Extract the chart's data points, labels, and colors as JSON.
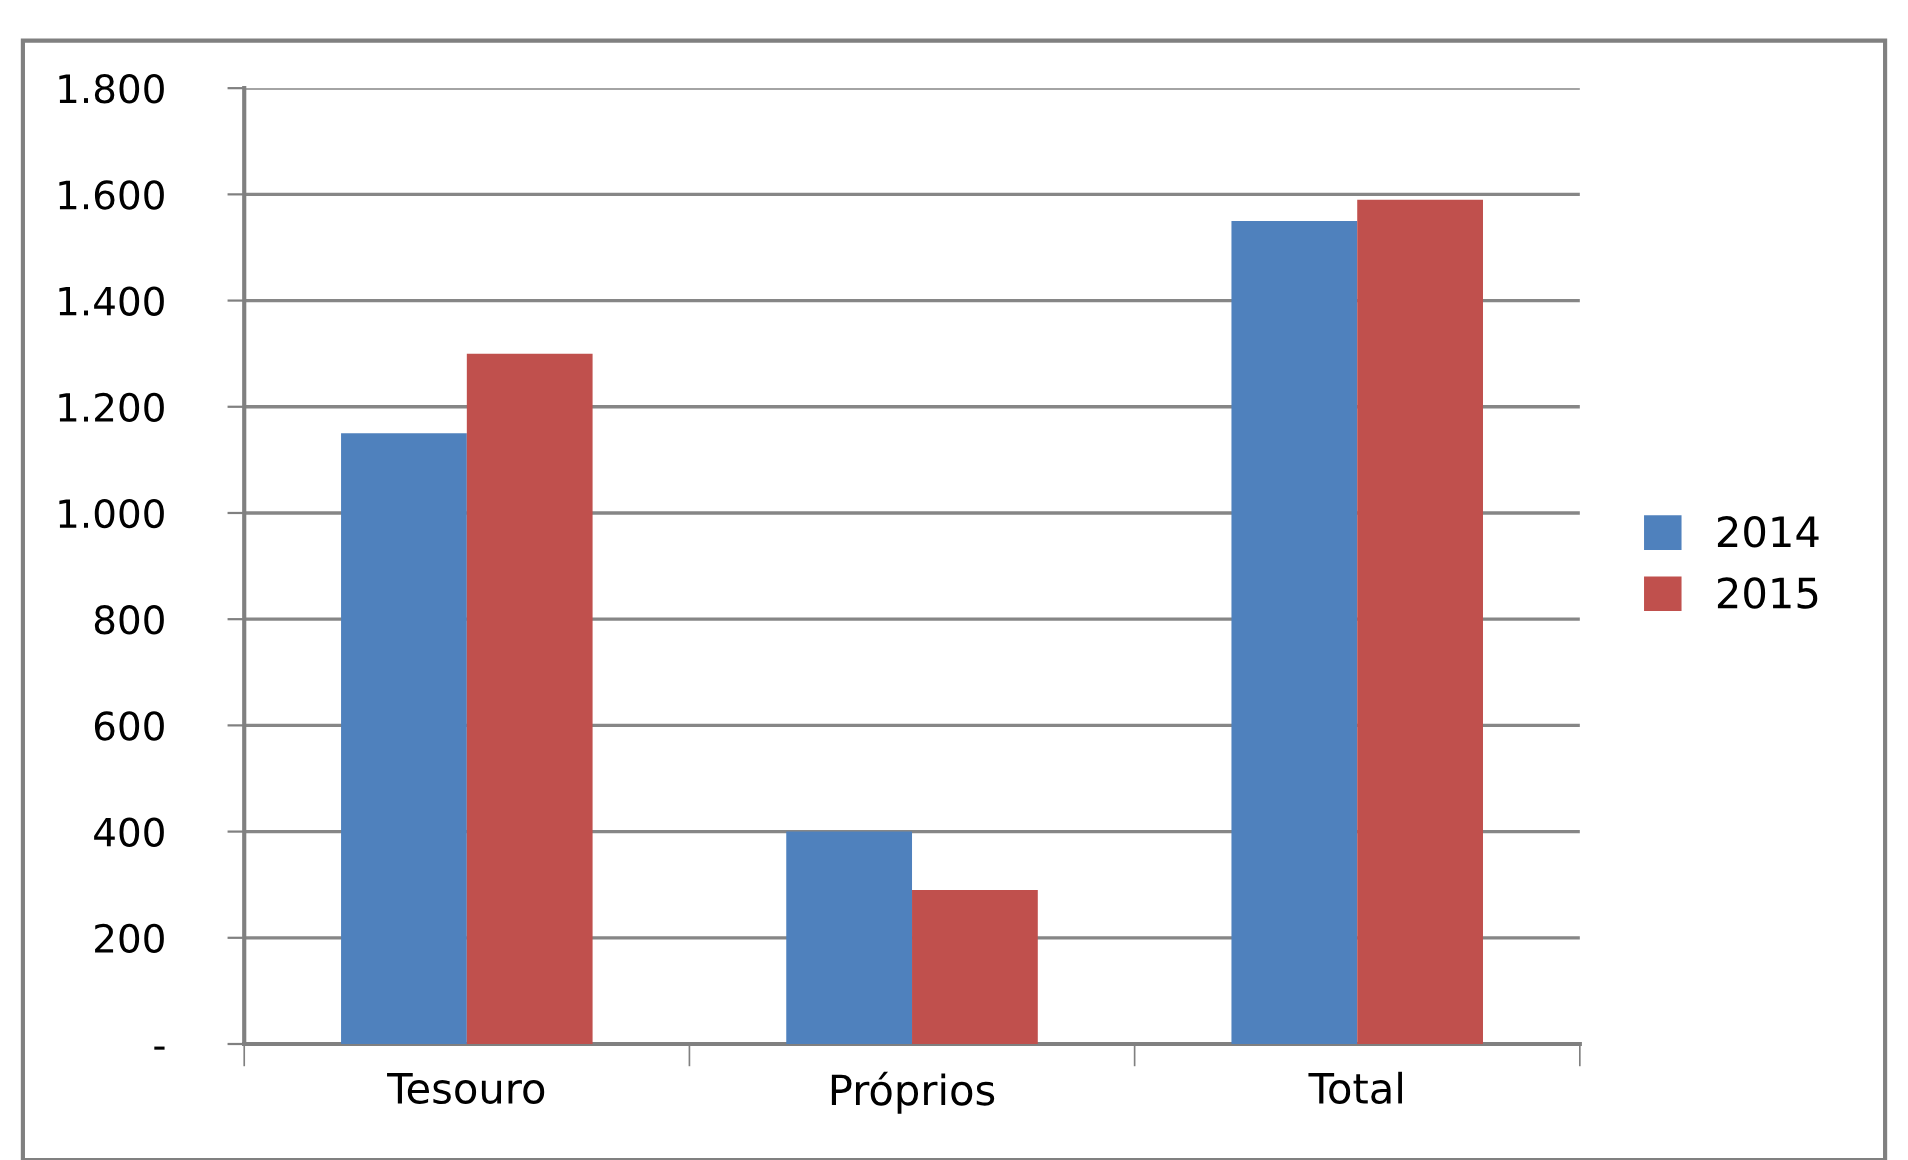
{
  "chart_data": {
    "type": "bar",
    "categories": [
      "Tesouro",
      "Próprios",
      "Total"
    ],
    "series": [
      {
        "name": "2014",
        "color": "#4f81bd",
        "values": [
          1150,
          400,
          1550
        ]
      },
      {
        "name": "2015",
        "color": "#c0504d",
        "values": [
          1300,
          290,
          1590
        ]
      }
    ],
    "ylim": [
      0,
      1800
    ],
    "yticks": [
      {
        "value": 0,
        "label": "-"
      },
      {
        "value": 200,
        "label": "200"
      },
      {
        "value": 400,
        "label": "400"
      },
      {
        "value": 600,
        "label": "600"
      },
      {
        "value": 800,
        "label": "800"
      },
      {
        "value": 1000,
        "label": "1.000"
      },
      {
        "value": 1200,
        "label": "1.200"
      },
      {
        "value": 1400,
        "label": "1.400"
      },
      {
        "value": 1600,
        "label": "1.600"
      },
      {
        "value": 1800,
        "label": "1.800"
      }
    ],
    "grid": "y",
    "legend": "right"
  }
}
